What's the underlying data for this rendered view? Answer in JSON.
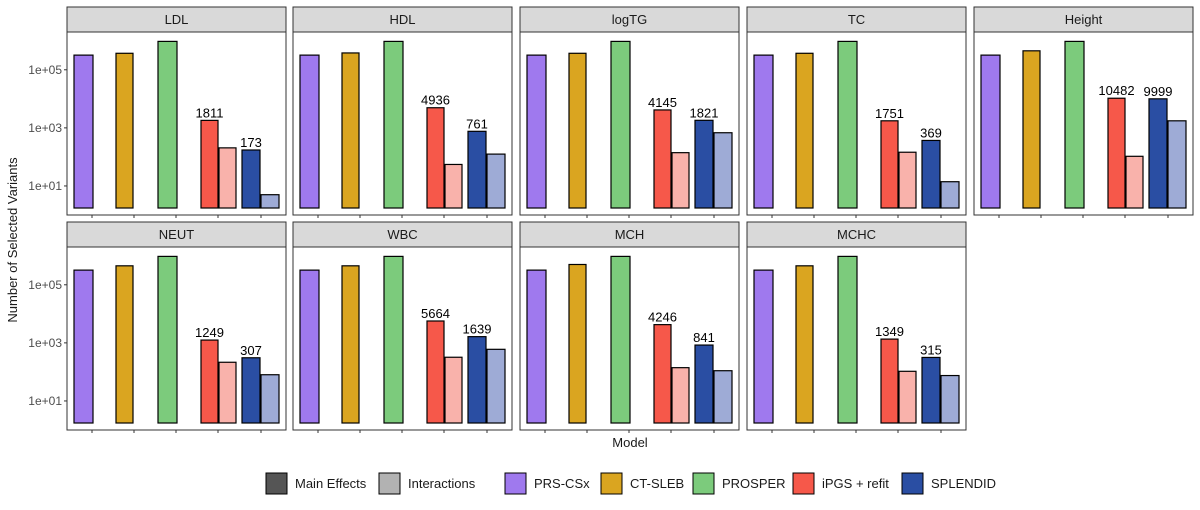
{
  "chart_data": {
    "type": "bar",
    "scale": "log10",
    "ylabel": "Number of Selected Variants",
    "xlabel": "Model",
    "y_ticks": [
      "1e+01",
      "1e+03",
      "1e+05"
    ],
    "y_tick_values": [
      10,
      1000,
      100000
    ],
    "ylim": [
      1,
      2000000
    ],
    "colors": {
      "PRS-CSx": "#9f79ee",
      "CT-SLEB": "#daa520",
      "PROSPER": "#7ccb7c",
      "iPGS_main": "#f6584a",
      "iPGS_int": "#f9b2ab",
      "SPLENDID_main": "#2a4ea3",
      "SPLENDID_int": "#9eabd6",
      "legend_main_effects": "#555555",
      "legend_interactions": "#b2b2b2",
      "strip_bg": "#d9d9d9"
    },
    "legend": {
      "effect_types": [
        "Main Effects",
        "Interactions"
      ],
      "models": [
        "PRS-CSx",
        "CT-SLEB",
        "PROSPER",
        "iPGS + refit",
        "SPLENDID"
      ]
    },
    "panels": [
      {
        "title": "LDL",
        "prscsx": 320000,
        "ctsleb": 370000,
        "prosper": 950000,
        "ipgs_main": 1811,
        "ipgs_int": 205,
        "splendid_main": 173,
        "splendid_int": 5,
        "ipgs_label": "1811",
        "splendid_label": "173"
      },
      {
        "title": "HDL",
        "prscsx": 320000,
        "ctsleb": 380000,
        "prosper": 950000,
        "ipgs_main": 4936,
        "ipgs_int": 55,
        "splendid_main": 761,
        "splendid_int": 125,
        "ipgs_label": "4936",
        "splendid_label": "761"
      },
      {
        "title": "logTG",
        "prscsx": 320000,
        "ctsleb": 370000,
        "prosper": 950000,
        "ipgs_main": 4145,
        "ipgs_int": 140,
        "splendid_main": 1821,
        "splendid_int": 680,
        "ipgs_label": "4145",
        "splendid_label": "1821"
      },
      {
        "title": "TC",
        "prscsx": 320000,
        "ctsleb": 370000,
        "prosper": 950000,
        "ipgs_main": 1751,
        "ipgs_int": 145,
        "splendid_main": 369,
        "splendid_int": 14,
        "ipgs_label": "1751",
        "splendid_label": "369"
      },
      {
        "title": "Height",
        "prscsx": 320000,
        "ctsleb": 450000,
        "prosper": 950000,
        "ipgs_main": 10482,
        "ipgs_int": 105,
        "splendid_main": 9999,
        "splendid_int": 1750,
        "ipgs_label": "10482",
        "splendid_label": "9999"
      },
      {
        "title": "NEUT",
        "prscsx": 320000,
        "ctsleb": 450000,
        "prosper": 950000,
        "ipgs_main": 1249,
        "ipgs_int": 215,
        "splendid_main": 307,
        "splendid_int": 80,
        "ipgs_label": "1249",
        "splendid_label": "307"
      },
      {
        "title": "WBC",
        "prscsx": 320000,
        "ctsleb": 450000,
        "prosper": 950000,
        "ipgs_main": 5664,
        "ipgs_int": 320,
        "splendid_main": 1639,
        "splendid_int": 600,
        "ipgs_label": "5664",
        "splendid_label": "1639"
      },
      {
        "title": "MCH",
        "prscsx": 320000,
        "ctsleb": 500000,
        "prosper": 950000,
        "ipgs_main": 4246,
        "ipgs_int": 140,
        "splendid_main": 841,
        "splendid_int": 110,
        "ipgs_label": "4246",
        "splendid_label": "841"
      },
      {
        "title": "MCHC",
        "prscsx": 320000,
        "ctsleb": 450000,
        "prosper": 950000,
        "ipgs_main": 1349,
        "ipgs_int": 105,
        "splendid_main": 315,
        "splendid_int": 75,
        "ipgs_label": "1349",
        "splendid_label": "315"
      }
    ]
  }
}
